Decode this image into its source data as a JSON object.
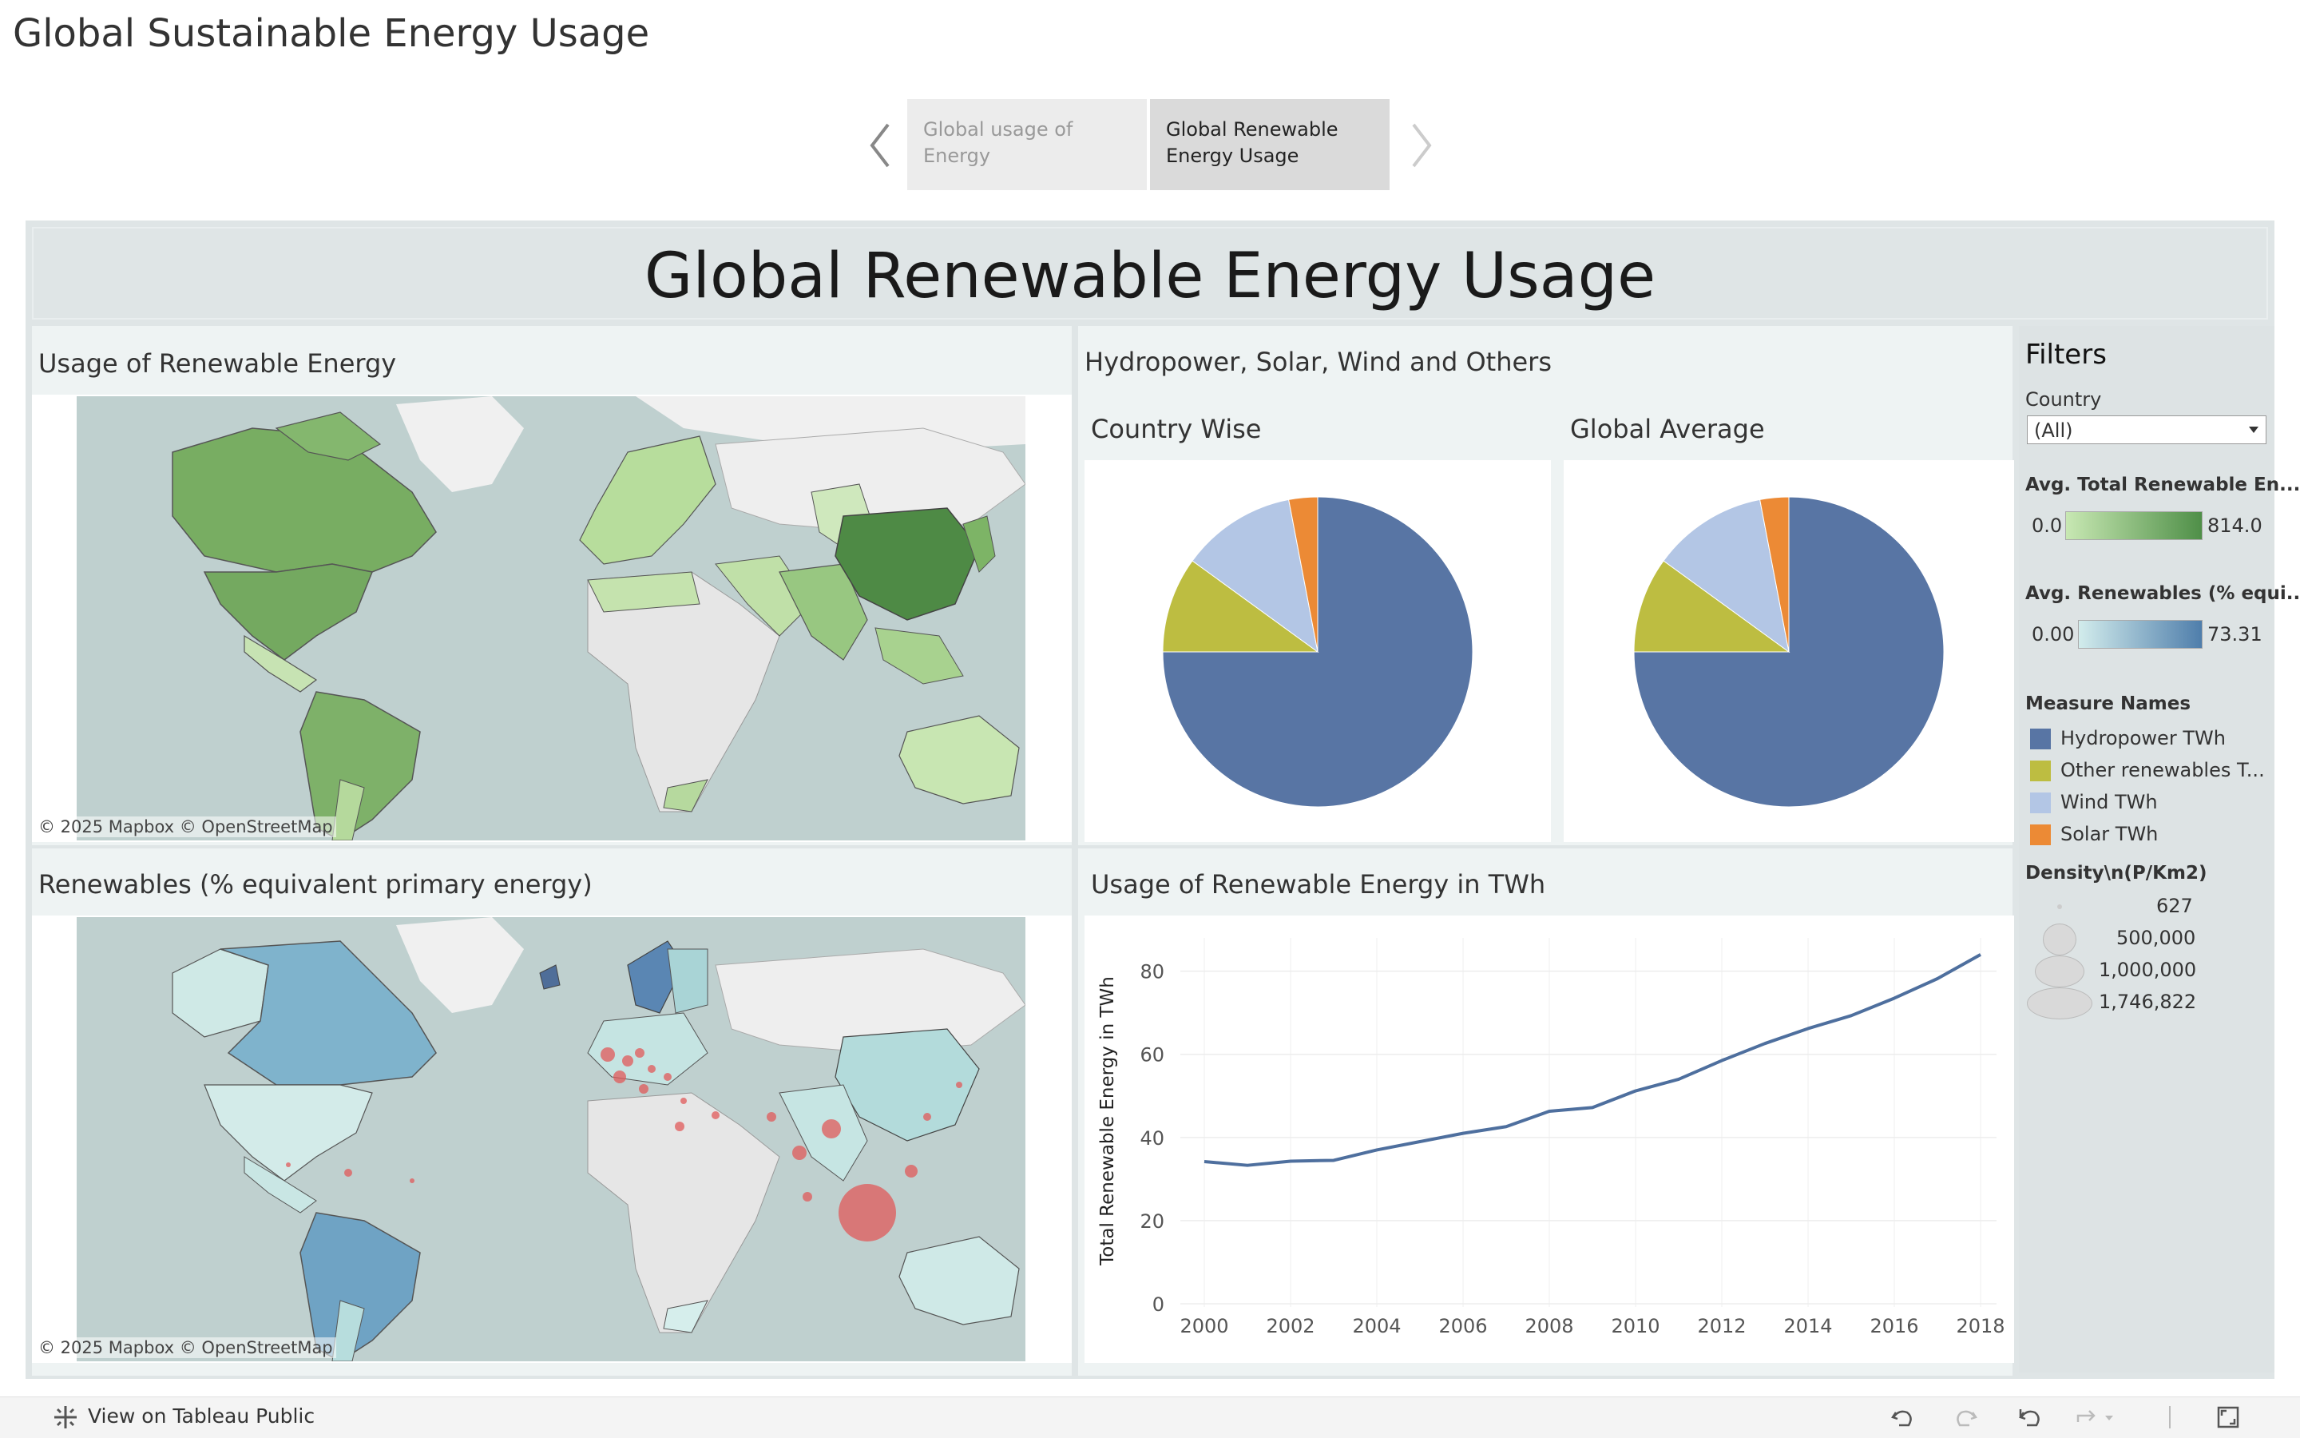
{
  "story": {
    "title": "Global Sustainable Energy Usage",
    "tabs": [
      {
        "label": "Global usage of Energy",
        "active": false
      },
      {
        "label": "Global Renewable Energy Usage",
        "active": true
      }
    ]
  },
  "dashboard": {
    "title": "Global Renewable Energy Usage",
    "map1": {
      "title": "Usage of Renewable Energy",
      "attribution": "© 2025 Mapbox  © OpenStreetMap"
    },
    "map2": {
      "title": "Renewables (% equivalent primary energy)",
      "attribution": "© 2025 Mapbox  © OpenStreetMap"
    },
    "pies_title": "Hydropower, Solar, Wind and Others",
    "pie1_title": "Country Wise",
    "pie2_title": "Global Average",
    "line_title": "Usage of Renewable Energy in TWh"
  },
  "filters": {
    "title": "Filters",
    "country_label": "Country",
    "country_value": "(All)",
    "avg_total_label": "Avg. Total Renewable En...",
    "avg_total_min": "0.0",
    "avg_total_max": "814.0",
    "avg_renew_label": "Avg. Renewables (% equi...",
    "avg_renew_min": "0.00",
    "avg_renew_max": "73.31",
    "measure_label": "Measure Names",
    "measures": [
      {
        "name": "Hydropower TWh",
        "color": "#5875a4"
      },
      {
        "name": "Other renewables T...",
        "color": "#bdbd41"
      },
      {
        "name": "Wind TWh",
        "color": "#b3c6e5"
      },
      {
        "name": "Solar TWh",
        "color": "#ec8a35"
      }
    ],
    "density_label": "Density\\n(P/Km2)",
    "density": [
      "627",
      "500,000",
      "1,000,000",
      "1,746,822"
    ]
  },
  "footer": {
    "view_label": "View on Tableau Public"
  },
  "colors": {
    "hydro": "#5875a4",
    "other": "#bdbd41",
    "wind": "#b3c6e5",
    "solar": "#ec8a35",
    "line": "#4e6f9e",
    "bubble": "#e05a5a"
  },
  "chart_data": [
    {
      "type": "pie",
      "title": "Country Wise",
      "categories": [
        "Hydropower TWh",
        "Other renewables TWh",
        "Wind TWh",
        "Solar TWh"
      ],
      "values": [
        75,
        10,
        12,
        3
      ]
    },
    {
      "type": "pie",
      "title": "Global Average",
      "categories": [
        "Hydropower TWh",
        "Other renewables TWh",
        "Wind TWh",
        "Solar TWh"
      ],
      "values": [
        75,
        10,
        12,
        3
      ]
    },
    {
      "type": "line",
      "title": "Usage of Renewable Energy in TWh",
      "xlabel": "",
      "ylabel": "Total Renewable Energy in TWh",
      "x": [
        2000,
        2001,
        2002,
        2003,
        2004,
        2005,
        2006,
        2007,
        2008,
        2009,
        2010,
        2011,
        2012,
        2013,
        2014,
        2015,
        2016,
        2017,
        2018
      ],
      "y": [
        34.2,
        33.3,
        34.3,
        34.5,
        37.0,
        39.0,
        41.0,
        42.6,
        46.3,
        47.2,
        51.2,
        54.0,
        58.5,
        62.6,
        66.2,
        69.3,
        73.5,
        78.2,
        84.0
      ],
      "ylim": [
        0,
        88
      ],
      "yticks": [
        0,
        20,
        40,
        60,
        80
      ],
      "xticks": [
        2000,
        2002,
        2004,
        2006,
        2008,
        2010,
        2012,
        2014,
        2016,
        2018
      ]
    }
  ]
}
